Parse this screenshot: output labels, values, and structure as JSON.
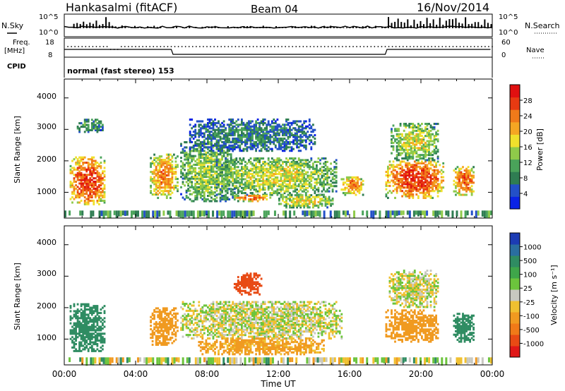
{
  "header": {
    "station": "Hankasalmi (fitACF)",
    "beam": "Beam 04",
    "date": "16/Nov/2014"
  },
  "status_panels": {
    "nsky_label": "N.Sky",
    "nsearch_label": "N.Search",
    "noise_ticks_top": "10^5",
    "noise_ticks_bottom": "10^0",
    "freq_label_1": "Freq.",
    "freq_label_2": "[MHz]",
    "freq_ticks": [
      "18",
      "8"
    ],
    "nave_ticks": [
      "60",
      "0"
    ],
    "nave_label": "Nave",
    "cpid_label": "CPID",
    "cpid_text": "normal (fast stereo) 153"
  },
  "axes": {
    "xlabel": "Time UT",
    "x_ticks": [
      "00:00",
      "04:00",
      "08:00",
      "12:00",
      "16:00",
      "20:00",
      "00:00"
    ],
    "ylabel": "Slant Range [km]",
    "y_ticks": [
      "1000",
      "2000",
      "3000",
      "4000"
    ]
  },
  "colorbars": {
    "power": {
      "label": "Power [dB]",
      "ticks": [
        "4",
        "8",
        "12",
        "16",
        "20",
        "24",
        "28"
      ],
      "colors": [
        "#0a23e6",
        "#2350c8",
        "#2f7d52",
        "#4aa35a",
        "#8fca4a",
        "#f0e02c",
        "#f5a623",
        "#f07a1a",
        "#e83a12",
        "#e01010"
      ]
    },
    "velocity": {
      "label": "Velocity [m s⁻¹]",
      "ticks": [
        "1000",
        "500",
        "100",
        "25",
        "-25",
        "-100",
        "-500",
        "-1000"
      ],
      "colors": [
        "#1c3cb4",
        "#2a6ea0",
        "#2f8c62",
        "#3fa64a",
        "#6cc43c",
        "#c8c8c0",
        "#f0c030",
        "#f09a20",
        "#f07a18",
        "#e84a14",
        "#e01818"
      ]
    }
  },
  "chart_data": [
    {
      "type": "heatmap",
      "title": "Power [dB]",
      "xlabel": "Time UT",
      "ylabel": "Slant Range [km]",
      "xlim": [
        0,
        24
      ],
      "ylim": [
        180,
        4600
      ],
      "zlim": [
        0,
        30
      ],
      "regions": [
        {
          "t0": 0.3,
          "t1": 2.3,
          "r0": 600,
          "r1": 2100,
          "z": 27
        },
        {
          "t0": 0.7,
          "t1": 2.2,
          "r0": 2900,
          "r1": 3300,
          "z": 10
        },
        {
          "t0": 4.8,
          "t1": 6.3,
          "r0": 800,
          "r1": 2200,
          "z": 22
        },
        {
          "t0": 6.5,
          "t1": 9.5,
          "r0": 700,
          "r1": 2600,
          "z": 14
        },
        {
          "t0": 8.5,
          "t1": 15.2,
          "r0": 900,
          "r1": 2100,
          "z": 16
        },
        {
          "t0": 9.5,
          "t1": 11.5,
          "r0": 700,
          "r1": 900,
          "z": 24
        },
        {
          "t0": 12.0,
          "t1": 15.0,
          "r0": 500,
          "r1": 900,
          "z": 18
        },
        {
          "t0": 7.0,
          "t1": 14.0,
          "r0": 2300,
          "r1": 3300,
          "z": 8
        },
        {
          "t0": 15.5,
          "t1": 16.8,
          "r0": 900,
          "r1": 1500,
          "z": 22
        },
        {
          "t0": 18.0,
          "t1": 21.3,
          "r0": 800,
          "r1": 2000,
          "z": 27
        },
        {
          "t0": 18.3,
          "t1": 21.0,
          "r0": 2000,
          "r1": 3200,
          "z": 16
        },
        {
          "t0": 21.8,
          "t1": 23.0,
          "r0": 900,
          "r1": 1800,
          "z": 25
        }
      ]
    },
    {
      "type": "heatmap",
      "title": "Velocity [m s⁻¹]",
      "xlabel": "Time UT",
      "ylabel": "Slant Range [km]",
      "xlim": [
        0,
        24
      ],
      "ylim": [
        180,
        4600
      ],
      "zlim": [
        -1000,
        1000
      ],
      "regions": [
        {
          "t0": 0.3,
          "t1": 2.3,
          "r0": 600,
          "r1": 2100,
          "v": 300
        },
        {
          "t0": 4.8,
          "t1": 6.3,
          "r0": 800,
          "r1": 2000,
          "v": -200
        },
        {
          "t0": 6.5,
          "t1": 15.5,
          "r0": 1000,
          "r1": 2200,
          "v": 0
        },
        {
          "t0": 7.5,
          "t1": 14.5,
          "r0": 500,
          "r1": 1000,
          "v": -150
        },
        {
          "t0": 9.5,
          "t1": 11.0,
          "r0": 2400,
          "r1": 3100,
          "v": -600
        },
        {
          "t0": 18.0,
          "t1": 21.0,
          "r0": 900,
          "r1": 1900,
          "v": -200
        },
        {
          "t0": 18.2,
          "t1": 21.0,
          "r0": 2000,
          "r1": 3200,
          "v": 0
        },
        {
          "t0": 21.8,
          "t1": 23.0,
          "r0": 900,
          "r1": 1800,
          "v": 250
        }
      ]
    }
  ]
}
